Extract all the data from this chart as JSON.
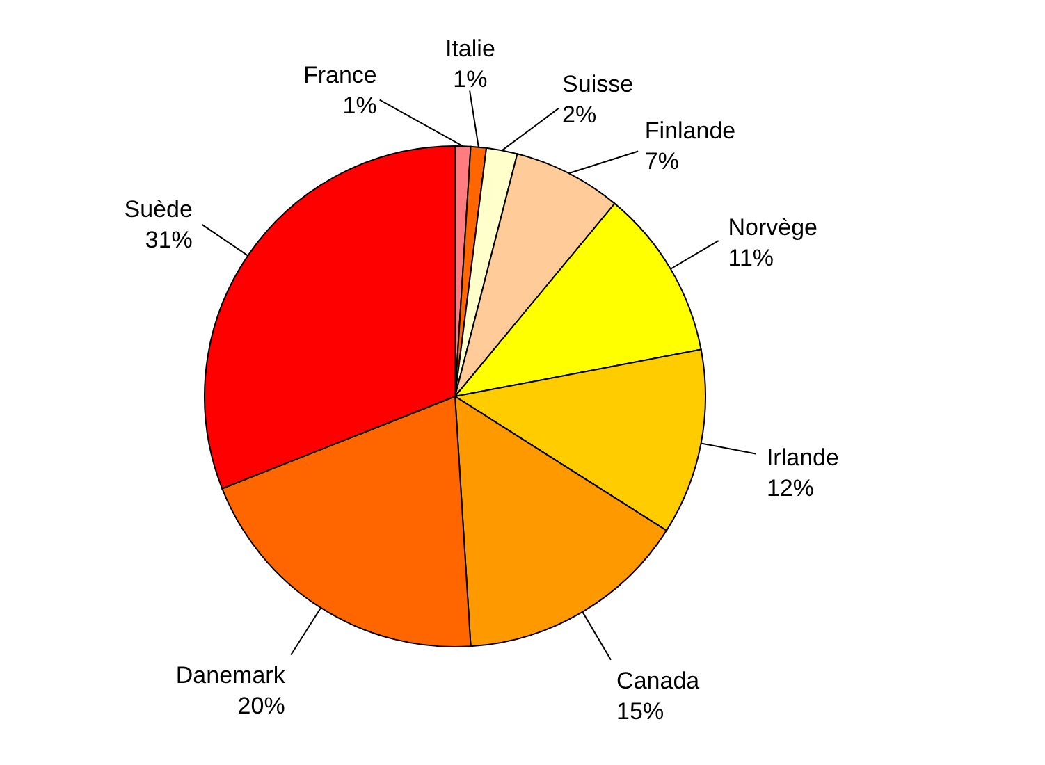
{
  "chart_data": {
    "type": "pie",
    "categories": [
      "France",
      "Italie",
      "Suisse",
      "Finlande",
      "Norvège",
      "Irlande",
      "Canada",
      "Danemark",
      "Suède"
    ],
    "values": [
      1,
      1,
      2,
      7,
      11,
      12,
      15,
      20,
      31
    ],
    "value_labels": [
      "1%",
      "1%",
      "2%",
      "7%",
      "11%",
      "12%",
      "15%",
      "20%",
      "31%"
    ],
    "colors": [
      "#ff7c80",
      "#ff6600",
      "#ffffcc",
      "#ffcc99",
      "#ffff00",
      "#ffcc00",
      "#ff9900",
      "#ff6600",
      "#ff0000"
    ]
  }
}
